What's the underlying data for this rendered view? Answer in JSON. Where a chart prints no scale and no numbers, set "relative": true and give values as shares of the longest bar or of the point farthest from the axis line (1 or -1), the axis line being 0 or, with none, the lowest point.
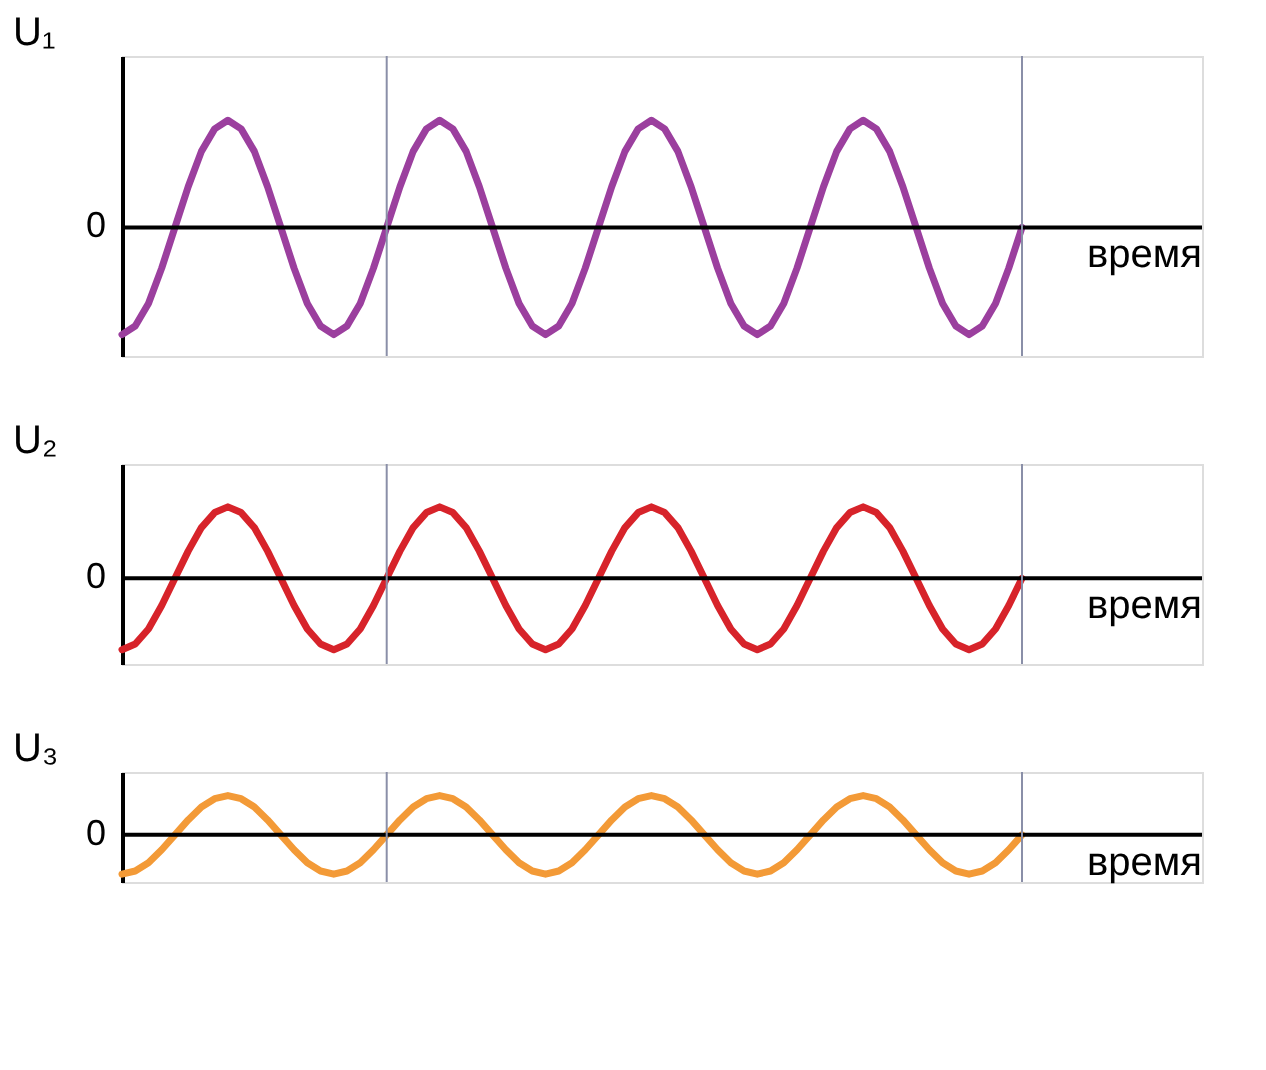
{
  "chart_data": [
    {
      "type": "line",
      "relative": true,
      "ylabel": "U₁",
      "xlabel": "время",
      "tick_labels": false,
      "grid": false,
      "marker": "none",
      "line_style": "solid",
      "categories": [
        null,
        null,
        null,
        null,
        null,
        null,
        null,
        null,
        null,
        null,
        null,
        null,
        null,
        null,
        null,
        null,
        null,
        null,
        null,
        null,
        null,
        null,
        null,
        null,
        null,
        null,
        null,
        null,
        null,
        null,
        null,
        null,
        null,
        null,
        null,
        null,
        null,
        null,
        null,
        null,
        null,
        null,
        null,
        null,
        null,
        null,
        null,
        null,
        null,
        null,
        null,
        null,
        null,
        null,
        null,
        null,
        null,
        null,
        null,
        null,
        null,
        null,
        null,
        null,
        null,
        null,
        null,
        null,
        null
      ],
      "series": [
        {
          "color": "#9b3f9e",
          "values": [
            -1,
            -0.92,
            -0.71,
            -0.38,
            0,
            0.38,
            0.71,
            0.92,
            1,
            0.92,
            0.71,
            0.38,
            0,
            -0.38,
            -0.71,
            -0.92,
            -1,
            -0.92,
            -0.71,
            -0.38,
            0,
            0.38,
            0.71,
            0.92,
            1,
            0.92,
            0.71,
            0.38,
            0,
            -0.38,
            -0.71,
            -0.92,
            -1,
            -0.92,
            -0.71,
            -0.38,
            0,
            0.38,
            0.71,
            0.92,
            1,
            0.92,
            0.71,
            0.38,
            0,
            -0.38,
            -0.71,
            -0.92,
            -1,
            -0.92,
            -0.71,
            -0.38,
            0,
            0.38,
            0.71,
            0.92,
            1,
            0.92,
            0.71,
            0.38,
            0,
            -0.38,
            -0.71,
            -0.92,
            -1,
            -0.92,
            -0.71,
            -0.38,
            0
          ]
        }
      ],
      "annotations": [
        "0"
      ]
    },
    {
      "type": "line",
      "relative": true,
      "ylabel": "U₂",
      "xlabel": "время",
      "tick_labels": false,
      "grid": false,
      "marker": "none",
      "line_style": "solid",
      "categories": [
        null,
        null,
        null,
        null,
        null,
        null,
        null,
        null,
        null,
        null,
        null,
        null,
        null,
        null,
        null,
        null,
        null,
        null,
        null,
        null,
        null,
        null,
        null,
        null,
        null,
        null,
        null,
        null,
        null,
        null,
        null,
        null,
        null,
        null,
        null,
        null,
        null,
        null,
        null,
        null,
        null,
        null,
        null,
        null,
        null,
        null,
        null,
        null,
        null,
        null,
        null,
        null,
        null,
        null,
        null,
        null,
        null,
        null,
        null,
        null,
        null,
        null,
        null,
        null,
        null,
        null,
        null,
        null,
        null
      ],
      "series": [
        {
          "color": "#d7232a",
          "values": [
            -1,
            -0.92,
            -0.71,
            -0.38,
            0,
            0.38,
            0.71,
            0.92,
            1,
            0.92,
            0.71,
            0.38,
            0,
            -0.38,
            -0.71,
            -0.92,
            -1,
            -0.92,
            -0.71,
            -0.38,
            0,
            0.38,
            0.71,
            0.92,
            1,
            0.92,
            0.71,
            0.38,
            0,
            -0.38,
            -0.71,
            -0.92,
            -1,
            -0.92,
            -0.71,
            -0.38,
            0,
            0.38,
            0.71,
            0.92,
            1,
            0.92,
            0.71,
            0.38,
            0,
            -0.38,
            -0.71,
            -0.92,
            -1,
            -0.92,
            -0.71,
            -0.38,
            0,
            0.38,
            0.71,
            0.92,
            1,
            0.92,
            0.71,
            0.38,
            0,
            -0.38,
            -0.71,
            -0.92,
            -1,
            -0.92,
            -0.71,
            -0.38,
            0
          ]
        }
      ],
      "annotations": [
        "0"
      ]
    },
    {
      "type": "line",
      "relative": true,
      "ylabel": "U₃",
      "xlabel": "время",
      "tick_labels": false,
      "grid": false,
      "marker": "none",
      "line_style": "solid",
      "categories": [
        null,
        null,
        null,
        null,
        null,
        null,
        null,
        null,
        null,
        null,
        null,
        null,
        null,
        null,
        null,
        null,
        null,
        null,
        null,
        null,
        null,
        null,
        null,
        null,
        null,
        null,
        null,
        null,
        null,
        null,
        null,
        null,
        null,
        null,
        null,
        null,
        null,
        null,
        null,
        null,
        null,
        null,
        null,
        null,
        null,
        null,
        null,
        null,
        null,
        null,
        null,
        null,
        null,
        null,
        null,
        null,
        null,
        null,
        null,
        null,
        null,
        null,
        null,
        null,
        null,
        null,
        null,
        null,
        null
      ],
      "series": [
        {
          "color": "#f39a37",
          "values": [
            -1,
            -0.92,
            -0.71,
            -0.38,
            0,
            0.38,
            0.71,
            0.92,
            1,
            0.92,
            0.71,
            0.38,
            0,
            -0.38,
            -0.71,
            -0.92,
            -1,
            -0.92,
            -0.71,
            -0.38,
            0,
            0.38,
            0.71,
            0.92,
            1,
            0.92,
            0.71,
            0.38,
            0,
            -0.38,
            -0.71,
            -0.92,
            -1,
            -0.92,
            -0.71,
            -0.38,
            0,
            0.38,
            0.71,
            0.92,
            1,
            0.92,
            0.71,
            0.38,
            0,
            -0.38,
            -0.71,
            -0.92,
            -1,
            -0.92,
            -0.71,
            -0.38,
            0,
            0.38,
            0.71,
            0.92,
            1,
            0.92,
            0.71,
            0.38,
            0,
            -0.38,
            -0.71,
            -0.92,
            -1,
            -0.92,
            -0.71,
            -0.38,
            0
          ]
        }
      ],
      "annotations": [
        "0"
      ]
    }
  ]
}
